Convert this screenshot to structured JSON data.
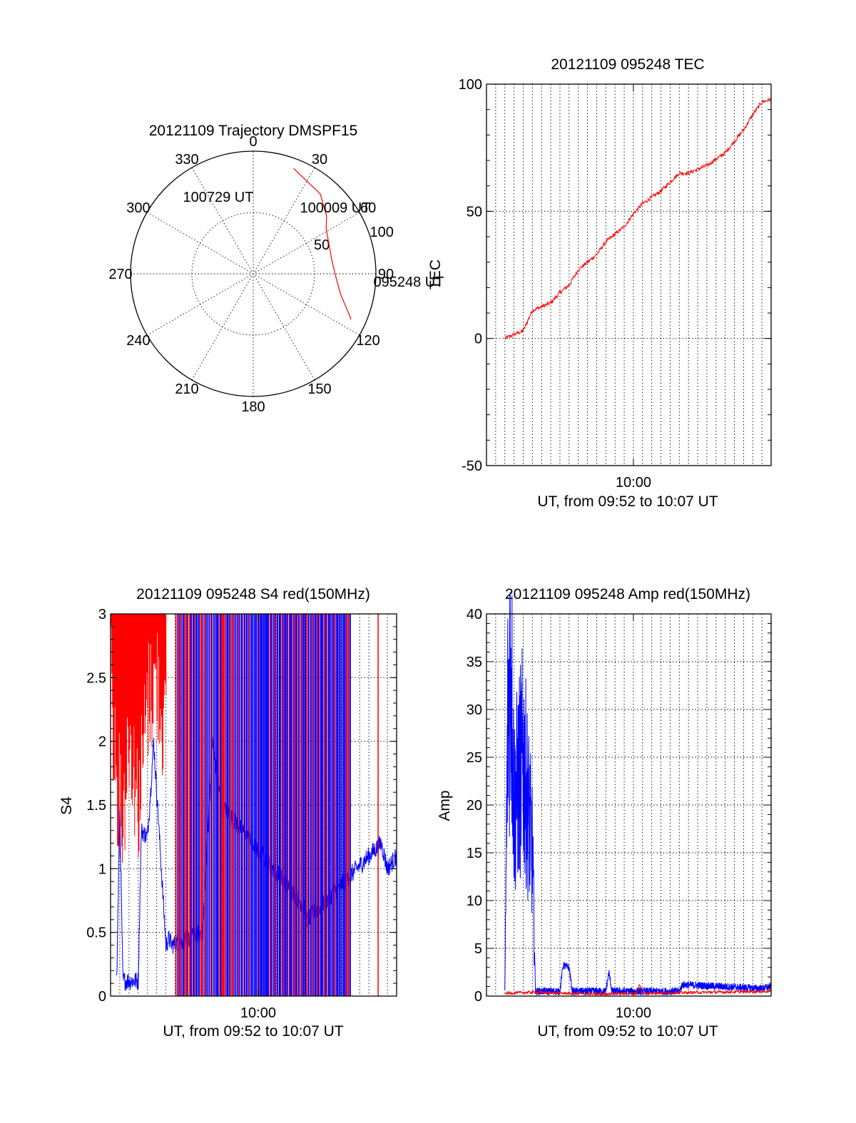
{
  "colors": {
    "red_channel": "#ff0000",
    "blue_channel": "#0000ff",
    "axes": "#000000"
  },
  "chart_data": [
    {
      "id": "trajectory",
      "type": "polar",
      "title": "20121109 Trajectory DMSPF15",
      "angle_labels": [
        "0",
        "30",
        "60",
        "90",
        "120",
        "150",
        "180",
        "210",
        "240",
        "270",
        "300",
        "330"
      ],
      "radial_labels": [
        "50",
        "100"
      ],
      "r_max": 100,
      "series": [
        {
          "color": "#ff0000",
          "points": [
            [
              92,
              21
            ],
            [
              85,
              40
            ],
            [
              76,
              52
            ],
            [
              70,
              58
            ],
            [
              66,
              70
            ],
            [
              65,
              80
            ],
            [
              67,
              91
            ],
            [
              73,
              103
            ],
            [
              82,
              111
            ],
            [
              88,
              115
            ]
          ]
        }
      ],
      "annotations": [
        {
          "text": "100729 UT",
          "az": 322,
          "el": 0
        },
        {
          "text": "100009 UT",
          "az": 48,
          "el": 0
        },
        {
          "text": "095248 UT",
          "az": 84,
          "el": 0
        }
      ]
    },
    {
      "id": "tec",
      "type": "line",
      "title": "20121109 095248 TEC",
      "ylabel": "TEC",
      "xlabel": "UT, from 09:52 to 10:07 UT",
      "xlim": [
        "09:52:00",
        "10:07:30"
      ],
      "ylim": [
        -50,
        100
      ],
      "yticks": [
        "-50",
        "0",
        "50",
        "100"
      ],
      "xticks": [
        {
          "t": "10:00:00",
          "label": "10:00"
        }
      ],
      "grid": true,
      "series": [
        {
          "color": "#ff0000",
          "points": [
            [
              "09:53:00",
              0
            ],
            [
              "09:54:00",
              3
            ],
            [
              "09:54:30",
              11
            ],
            [
              "09:55:30",
              14
            ],
            [
              "09:56:00",
              18
            ],
            [
              "09:56:30",
              21
            ],
            [
              "09:57:00",
              27
            ],
            [
              "09:58:00",
              33
            ],
            [
              "09:58:30",
              38
            ],
            [
              "09:59:30",
              44
            ],
            [
              "10:00:00",
              49
            ],
            [
              "10:00:30",
              53
            ],
            [
              "10:01:30",
              58
            ],
            [
              "10:02:30",
              65
            ],
            [
              "10:03:00",
              65
            ],
            [
              "10:04:00",
              68
            ],
            [
              "10:05:00",
              73
            ],
            [
              "10:06:00",
              82
            ],
            [
              "10:06:30",
              88
            ],
            [
              "10:07:00",
              93
            ],
            [
              "10:07:30",
              94
            ]
          ]
        }
      ]
    },
    {
      "id": "s4",
      "type": "line",
      "title": "20121109 095248 S4 red(150MHz)",
      "ylabel": "S4",
      "xlabel": "UT, from 09:52 to 10:07 UT",
      "xlim": [
        "09:52:00",
        "10:07:30"
      ],
      "ylim": [
        0,
        3
      ],
      "yticks": [
        "0",
        "0.5",
        "1",
        "1.5",
        "2",
        "2.5",
        "3"
      ],
      "xticks": [
        {
          "t": "10:00:00",
          "label": "10:00"
        }
      ],
      "grid": true,
      "series": [
        {
          "color": "#0000ff",
          "points": [
            [
              "09:52:20",
              0.12
            ],
            [
              "09:52:30",
              1.45
            ],
            [
              "09:52:40",
              0.12
            ],
            [
              "09:53:30",
              0.12
            ],
            [
              "09:53:40",
              1.3
            ],
            [
              "09:54:00",
              1.25
            ],
            [
              "09:54:10",
              1.6
            ],
            [
              "09:54:20",
              2.0
            ],
            [
              "09:55:00",
              0.4
            ],
            [
              "09:55:10",
              0.45
            ],
            [
              "09:55:20",
              0.4
            ],
            [
              "09:57:00",
              0.5
            ],
            [
              "09:57:30",
              2.0
            ],
            [
              "09:58:00",
              1.5
            ],
            [
              "10:02:30",
              0.7
            ],
            [
              "10:02:40",
              0.6
            ],
            [
              "10:06:40",
              1.2
            ],
            [
              "10:07:00",
              1.0
            ],
            [
              "10:07:30",
              1.1
            ]
          ]
        },
        {
          "color": "#ff0000",
          "points": [
            [
              "09:52:00",
              3.0
            ],
            [
              "09:52:20",
              2.2
            ],
            [
              "09:52:40",
              1.9
            ],
            [
              "09:53:00",
              2.6
            ],
            [
              "09:53:30",
              2.0
            ],
            [
              "09:54:00",
              2.8
            ],
            [
              "09:54:30",
              3.0
            ],
            [
              "09:55:00",
              2.5
            ]
          ]
        }
      ]
    },
    {
      "id": "amp",
      "type": "line",
      "title": "20121109 095248 Amp red(150MHz)",
      "ylabel": "Amp",
      "xlabel": "UT, from 09:52 to 10:07 UT",
      "xlim": [
        "09:52:00",
        "10:07:30"
      ],
      "ylim": [
        0,
        40
      ],
      "yticks": [
        "0",
        "5",
        "10",
        "15",
        "20",
        "25",
        "30",
        "35",
        "40"
      ],
      "xticks": [
        {
          "t": "10:00:00",
          "label": "10:00"
        }
      ],
      "grid": true,
      "series": [
        {
          "color": "#0000ff",
          "points": [
            [
              "09:53:00",
              0.5
            ],
            [
              "09:53:10",
              30
            ],
            [
              "09:53:20",
              35
            ],
            [
              "09:53:30",
              20
            ],
            [
              "09:54:00",
              25
            ],
            [
              "09:54:30",
              15
            ],
            [
              "09:54:40",
              0.5
            ],
            [
              "09:56:00",
              0.5
            ],
            [
              "09:56:10",
              3.2
            ],
            [
              "09:56:30",
              3.0
            ],
            [
              "09:56:40",
              0.5
            ],
            [
              "09:58:30",
              0.5
            ],
            [
              "09:58:40",
              2.5
            ],
            [
              "09:58:50",
              0.5
            ],
            [
              "10:02:30",
              0.5
            ],
            [
              "10:02:40",
              1.2
            ],
            [
              "10:07:00",
              0.8
            ],
            [
              "10:07:30",
              1.0
            ]
          ]
        },
        {
          "color": "#ff0000",
          "points": [
            [
              "09:53:00",
              0.3
            ],
            [
              "09:54:30",
              0.4
            ],
            [
              "09:58:00",
              0.2
            ],
            [
              "10:00:10",
              0.3
            ],
            [
              "10:00:20",
              1.2
            ],
            [
              "10:00:30",
              0.3
            ],
            [
              "10:07:30",
              0.5
            ]
          ]
        }
      ]
    }
  ]
}
